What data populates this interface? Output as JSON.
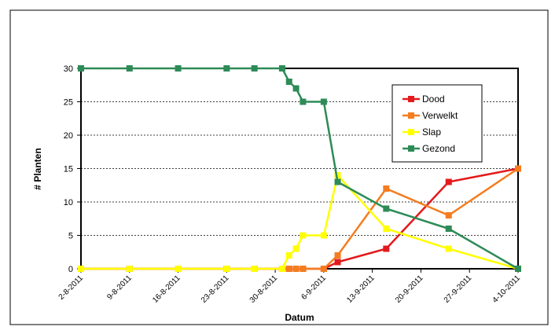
{
  "chart_data": {
    "type": "line",
    "xlabel": "Datum",
    "ylabel": "# Planten",
    "x_ticks": [
      "2-8-2011",
      "9-8-2011",
      "16-8-2011",
      "23-8-2011",
      "30-8-2011",
      "6-9-2011",
      "13-9-2011",
      "20-9-2011",
      "27-9-2011",
      "4-10-2011"
    ],
    "xlim": [
      "2011-08-02",
      "2011-10-04"
    ],
    "ylim": [
      0,
      30
    ],
    "y_ticks": [
      0,
      5,
      10,
      15,
      20,
      25,
      30
    ],
    "grid": "horizontal dashed",
    "legend_position": "right",
    "series": [
      {
        "name": "Dood",
        "color": "#e31a1c",
        "points": [
          [
            "2011-08-02",
            0
          ],
          [
            "2011-08-09",
            0
          ],
          [
            "2011-08-16",
            0
          ],
          [
            "2011-08-23",
            0
          ],
          [
            "2011-08-27",
            0
          ],
          [
            "2011-08-31",
            0
          ],
          [
            "2011-09-01",
            0
          ],
          [
            "2011-09-02",
            0
          ],
          [
            "2011-09-03",
            0
          ],
          [
            "2011-09-06",
            0
          ],
          [
            "2011-09-08",
            1
          ],
          [
            "2011-09-15",
            3
          ],
          [
            "2011-09-24",
            13
          ],
          [
            "2011-10-04",
            15
          ]
        ]
      },
      {
        "name": "Verwelkt",
        "color": "#f57c1f",
        "points": [
          [
            "2011-08-02",
            0
          ],
          [
            "2011-08-09",
            0
          ],
          [
            "2011-08-16",
            0
          ],
          [
            "2011-08-23",
            0
          ],
          [
            "2011-08-27",
            0
          ],
          [
            "2011-08-31",
            0
          ],
          [
            "2011-09-01",
            0
          ],
          [
            "2011-09-02",
            0
          ],
          [
            "2011-09-03",
            0
          ],
          [
            "2011-09-06",
            0
          ],
          [
            "2011-09-08",
            2
          ],
          [
            "2011-09-15",
            12
          ],
          [
            "2011-09-24",
            8
          ],
          [
            "2011-10-04",
            15
          ]
        ]
      },
      {
        "name": "Slap",
        "color": "#ffff00",
        "points": [
          [
            "2011-08-02",
            0
          ],
          [
            "2011-08-09",
            0
          ],
          [
            "2011-08-16",
            0
          ],
          [
            "2011-08-23",
            0
          ],
          [
            "2011-08-27",
            0
          ],
          [
            "2011-08-31",
            0
          ],
          [
            "2011-09-01",
            2
          ],
          [
            "2011-09-02",
            3
          ],
          [
            "2011-09-03",
            5
          ],
          [
            "2011-09-06",
            5
          ],
          [
            "2011-09-08",
            14
          ],
          [
            "2011-09-15",
            6
          ],
          [
            "2011-09-24",
            3
          ],
          [
            "2011-10-04",
            0
          ]
        ]
      },
      {
        "name": "Gezond",
        "color": "#2e8b57",
        "points": [
          [
            "2011-08-02",
            30
          ],
          [
            "2011-08-09",
            30
          ],
          [
            "2011-08-16",
            30
          ],
          [
            "2011-08-23",
            30
          ],
          [
            "2011-08-27",
            30
          ],
          [
            "2011-08-31",
            30
          ],
          [
            "2011-09-01",
            28
          ],
          [
            "2011-09-02",
            27
          ],
          [
            "2011-09-03",
            25
          ],
          [
            "2011-09-06",
            25
          ],
          [
            "2011-09-08",
            13
          ],
          [
            "2011-09-15",
            9
          ],
          [
            "2011-09-24",
            6
          ],
          [
            "2011-10-04",
            0
          ]
        ]
      }
    ]
  }
}
